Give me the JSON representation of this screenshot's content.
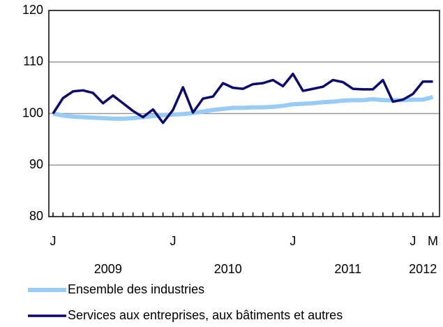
{
  "chart_data": {
    "type": "line",
    "categories": [
      "J",
      null,
      null,
      null,
      null,
      null,
      null,
      null,
      null,
      null,
      null,
      null,
      "J",
      null,
      null,
      null,
      null,
      null,
      null,
      null,
      null,
      null,
      null,
      null,
      "J",
      null,
      null,
      null,
      null,
      null,
      null,
      null,
      null,
      null,
      null,
      null,
      "J",
      null,
      "M"
    ],
    "year_labels": [
      "2009",
      "2010",
      "2011",
      "2012"
    ],
    "series": [
      {
        "name": "Ensemble des industries",
        "color": "#99ccf5",
        "values": [
          100,
          99.6,
          99.4,
          99.3,
          99.2,
          99.1,
          99.0,
          99.0,
          99.1,
          99.3,
          99.5,
          99.7,
          99.8,
          99.9,
          100.1,
          100.4,
          100.7,
          100.9,
          101.1,
          101.1,
          101.2,
          101.2,
          101.3,
          101.5,
          101.8,
          101.9,
          102.0,
          102.2,
          102.3,
          102.5,
          102.6,
          102.6,
          102.8,
          102.6,
          102.6,
          102.6,
          102.7,
          102.7,
          103.2
        ]
      },
      {
        "name": "Services aux entreprises, aux bâtiments et autres",
        "color": "#0a0a6e",
        "values": [
          100,
          103.0,
          104.3,
          104.5,
          104.0,
          102.0,
          103.5,
          102.0,
          100.5,
          99.3,
          100.8,
          98.2,
          100.7,
          105.1,
          100.2,
          102.9,
          103.3,
          105.9,
          105.0,
          104.8,
          105.7,
          105.9,
          106.5,
          105.3,
          107.7,
          104.4,
          104.8,
          105.2,
          106.5,
          106.1,
          104.8,
          104.7,
          104.7,
          106.5,
          102.3,
          102.7,
          103.8,
          106.2,
          106.2
        ]
      }
    ],
    "ylim": [
      80,
      120
    ],
    "yticks": [
      80,
      90,
      100,
      110,
      120
    ],
    "grid": true
  }
}
